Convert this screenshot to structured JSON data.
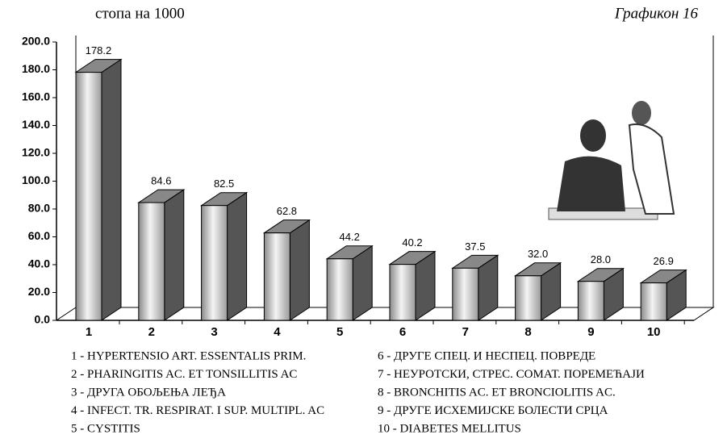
{
  "chart_data": {
    "type": "bar3d",
    "subtitle": "стопа на 1000",
    "title": "Графикон 16",
    "categories": [
      "1",
      "2",
      "3",
      "4",
      "5",
      "6",
      "7",
      "8",
      "9",
      "10"
    ],
    "values": [
      178.2,
      84.6,
      82.5,
      62.8,
      44.2,
      40.2,
      37.5,
      32.0,
      28.0,
      26.9
    ],
    "value_labels": [
      "178.2",
      "84.6",
      "82.5",
      "62.8",
      "44.2",
      "40.2",
      "37.5",
      "32.0",
      "28.0",
      "26.9"
    ],
    "color": "#a8a8a8",
    "ylim": [
      0,
      200
    ],
    "yticks": [
      {
        "value": 0,
        "label": "0.0"
      },
      {
        "value": 20,
        "label": "20.0"
      },
      {
        "value": 40,
        "label": "40.0"
      },
      {
        "value": 60,
        "label": "60.0"
      },
      {
        "value": 80,
        "label": "80.0"
      },
      {
        "value": 100,
        "label": "100.0"
      },
      {
        "value": 120,
        "label": "120.0"
      },
      {
        "value": 140,
        "label": "140.0"
      },
      {
        "value": 160,
        "label": "160.0"
      },
      {
        "value": 180,
        "label": "180.0"
      },
      {
        "value": 200,
        "label": "200.0"
      }
    ],
    "category_descriptions": [
      "1 - HYPERTENSIO ART. ESSENTALIS PRIM.",
      "2 - PHARINGITIS AC. ET TONSILLITIS AC",
      "3 - ДРУГА ОБОЉЕЊА ЛЕЂА",
      "4 - INFECT. TR. RESPIRAT. I SUP. MULTIPL. AC",
      "5 - CYSTITIS",
      "6 - ДРУГЕ СПЕЦ. И НЕСПЕЦ. ПОВРЕДЕ",
      "7 - НЕУРОТСКИ, СТРЕС. СОМАТ. ПОРЕМЕЋАЈИ",
      "8 - BRONCHITIS AC. ET BRONCIOLITIS AC.",
      "9 - ДРУГЕ ИСХЕМИЈСКЕ БОЛЕСТИ СРЦА",
      "10 - DIABETES MELLITUS"
    ]
  }
}
